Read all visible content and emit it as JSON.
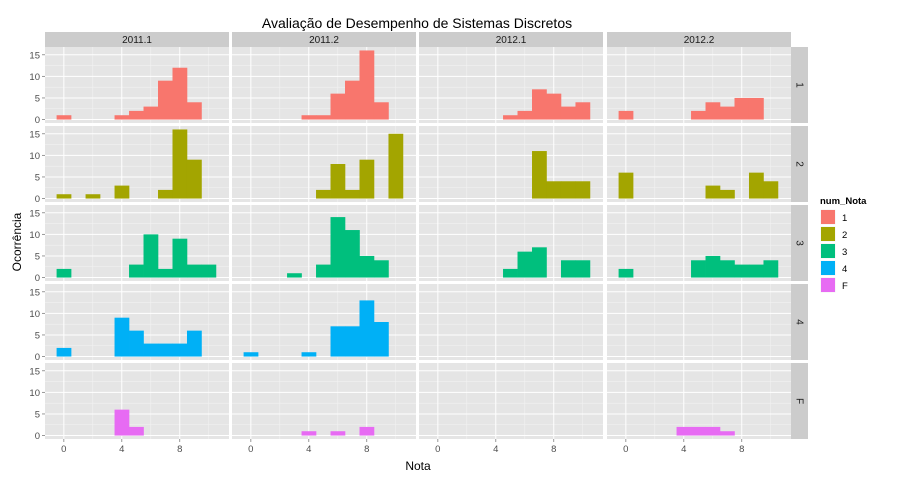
{
  "chart_data": {
    "type": "bar",
    "title": "Avaliação de Desempenho de Sistemas Discretos",
    "xlabel": "Nota",
    "ylabel": "Ocorrência",
    "xlim": [
      -1.3,
      11.4
    ],
    "ylim": [
      -0.8,
      16.8
    ],
    "x_ticks": [
      0,
      4,
      8
    ],
    "y_ticks": [
      0,
      5,
      10,
      15
    ],
    "bin_width": 1,
    "grid": true,
    "legend": {
      "title": "num_Nota",
      "placement": "right"
    },
    "columns": [
      "2011.1",
      "2011.2",
      "2012.1",
      "2012.2"
    ],
    "rows": [
      "1",
      "2",
      "3",
      "4",
      "F"
    ],
    "colors": {
      "1": "#F8766D",
      "2": "#A3A500",
      "3": "#00BF7D",
      "4": "#00B0F6",
      "F": "#E76BF3"
    },
    "series": [
      {
        "name": "1",
        "panels": [
          [
            [
              0,
              1
            ],
            [
              4,
              1
            ],
            [
              5,
              2
            ],
            [
              6,
              3
            ],
            [
              7,
              9
            ],
            [
              8,
              12
            ],
            [
              9,
              4
            ]
          ],
          [
            [
              4,
              1
            ],
            [
              5,
              1
            ],
            [
              6,
              6
            ],
            [
              7,
              9
            ],
            [
              8,
              16
            ],
            [
              9,
              4
            ]
          ],
          [
            [
              5,
              1
            ],
            [
              6,
              2
            ],
            [
              7,
              7
            ],
            [
              8,
              6
            ],
            [
              9,
              3
            ],
            [
              10,
              4
            ]
          ],
          [
            [
              0,
              2
            ],
            [
              5,
              2
            ],
            [
              6,
              4
            ],
            [
              7,
              3
            ],
            [
              8,
              5
            ],
            [
              9,
              5
            ]
          ]
        ]
      },
      {
        "name": "2",
        "panels": [
          [
            [
              0,
              1
            ],
            [
              2,
              1
            ],
            [
              4,
              3
            ],
            [
              7,
              2
            ],
            [
              8,
              16
            ],
            [
              9,
              9
            ]
          ],
          [
            [
              5,
              2
            ],
            [
              6,
              8
            ],
            [
              7,
              2
            ],
            [
              8,
              9
            ],
            [
              10,
              15
            ]
          ],
          [
            [
              7,
              11
            ],
            [
              8,
              4
            ],
            [
              9,
              4
            ],
            [
              10,
              4
            ]
          ],
          [
            [
              0,
              6
            ],
            [
              6,
              3
            ],
            [
              7,
              2
            ],
            [
              9,
              6
            ],
            [
              10,
              4
            ]
          ]
        ]
      },
      {
        "name": "3",
        "panels": [
          [
            [
              0,
              2
            ],
            [
              5,
              3
            ],
            [
              6,
              10
            ],
            [
              7,
              2
            ],
            [
              8,
              9
            ],
            [
              9,
              3
            ],
            [
              10,
              3
            ]
          ],
          [
            [
              3,
              1
            ],
            [
              5,
              3
            ],
            [
              6,
              14
            ],
            [
              7,
              11
            ],
            [
              8,
              5
            ],
            [
              9,
              4
            ]
          ],
          [
            [
              5,
              2
            ],
            [
              6,
              6
            ],
            [
              7,
              7
            ],
            [
              9,
              4
            ],
            [
              10,
              4
            ]
          ],
          [
            [
              0,
              2
            ],
            [
              5,
              4
            ],
            [
              6,
              5
            ],
            [
              7,
              4
            ],
            [
              8,
              3
            ],
            [
              9,
              3
            ],
            [
              10,
              4
            ]
          ]
        ]
      },
      {
        "name": "4",
        "panels": [
          [
            [
              0,
              2
            ],
            [
              4,
              9
            ],
            [
              5,
              6
            ],
            [
              6,
              3
            ],
            [
              7,
              3
            ],
            [
              8,
              3
            ],
            [
              9,
              6
            ]
          ],
          [
            [
              0,
              1
            ],
            [
              4,
              1
            ],
            [
              6,
              7
            ],
            [
              7,
              7
            ],
            [
              8,
              13
            ],
            [
              9,
              8
            ]
          ],
          [],
          []
        ]
      },
      {
        "name": "F",
        "panels": [
          [
            [
              4,
              6
            ],
            [
              5,
              2
            ]
          ],
          [
            [
              4,
              1
            ],
            [
              6,
              1
            ],
            [
              8,
              2
            ]
          ],
          [],
          [
            [
              4,
              2
            ],
            [
              5,
              2
            ],
            [
              6,
              2
            ],
            [
              7,
              1
            ]
          ]
        ]
      }
    ]
  }
}
